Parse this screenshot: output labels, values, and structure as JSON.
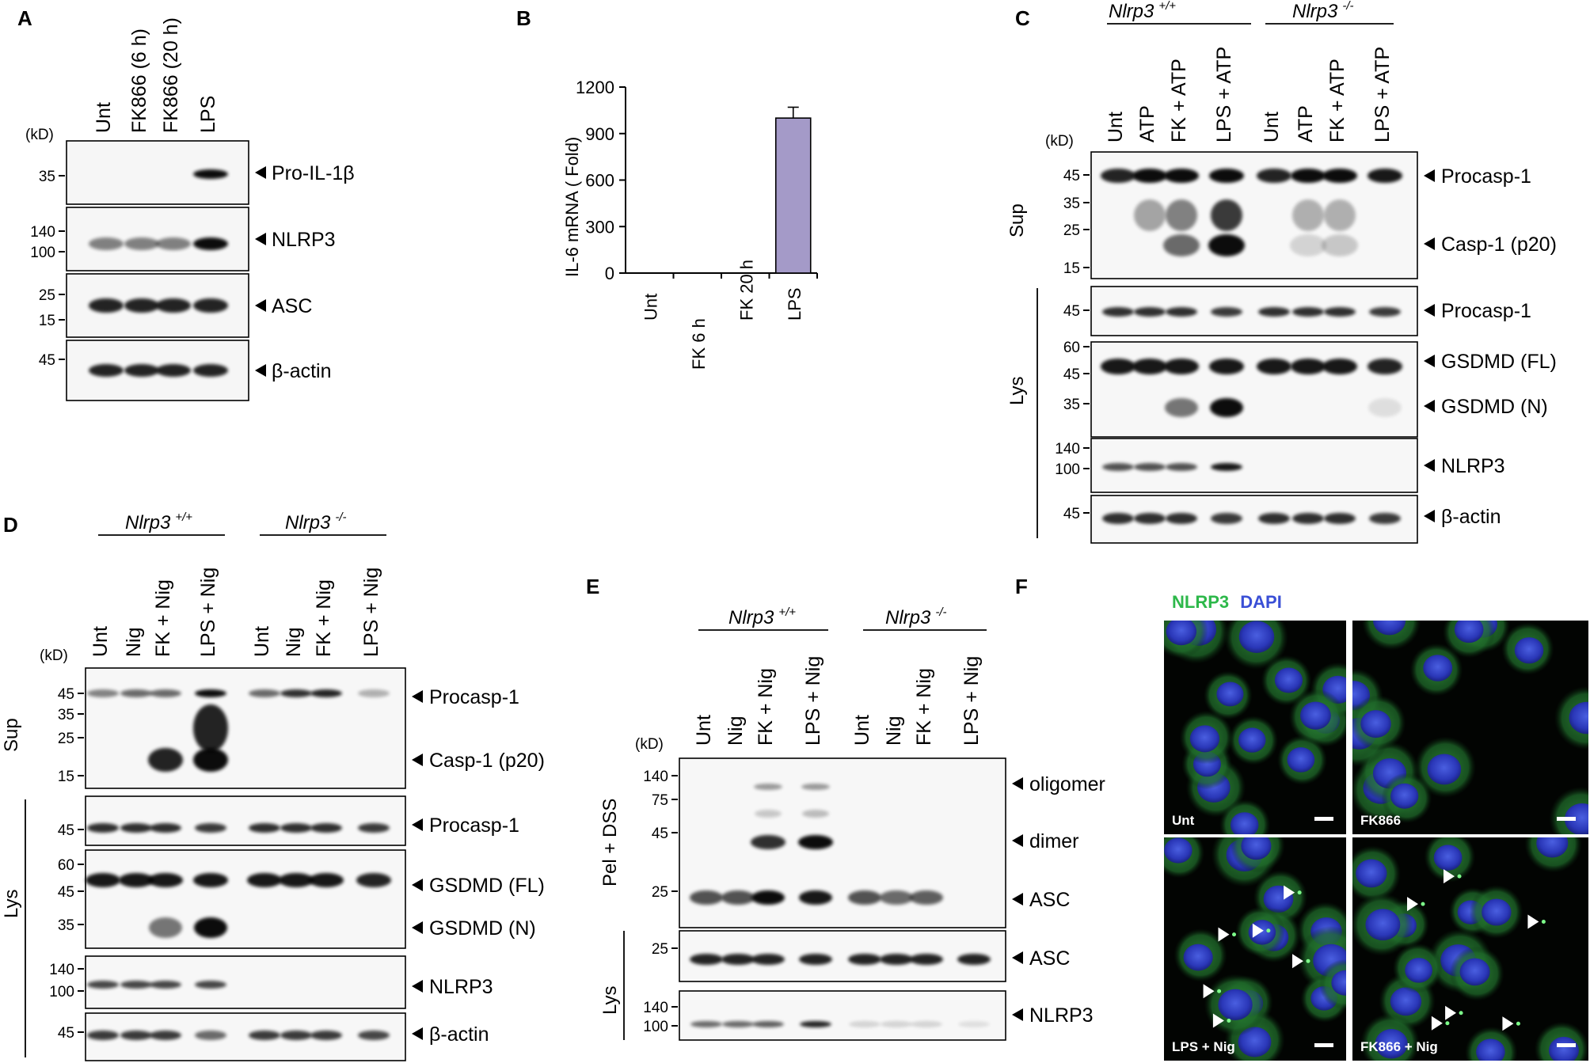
{
  "panels": {
    "A": {
      "label": "A",
      "kd_label": "(kD)",
      "lanes": [
        "Unt",
        "FK866 (6 h)",
        "FK866 (20 h)",
        "LPS"
      ],
      "blots": [
        {
          "name": "Pro-IL-1β",
          "markers": [
            "35"
          ],
          "bands": [
            0,
            0,
            0,
            1
          ]
        },
        {
          "name": "NLRP3",
          "markers": [
            "140",
            "100"
          ],
          "bands": [
            0.5,
            0.5,
            0.5,
            1
          ]
        },
        {
          "name": "ASC",
          "markers": [
            "25",
            "15"
          ],
          "bands": [
            0.9,
            0.9,
            0.9,
            0.9
          ]
        },
        {
          "name": "β-actin",
          "markers": [
            "45"
          ],
          "bands": [
            0.9,
            0.9,
            0.9,
            0.9
          ]
        }
      ]
    },
    "B": {
      "label": "B",
      "chart_data": {
        "type": "bar",
        "categories": [
          "Unt",
          "FK 6 h",
          "FK 20 h",
          "LPS"
        ],
        "values": [
          0,
          0,
          0,
          1000
        ],
        "error": [
          0,
          0,
          0,
          70
        ],
        "ylabel": "IL-6 mRNA ( Fold)",
        "xlabel": "",
        "ylim": [
          0,
          1200
        ],
        "yticks": [
          "0",
          "300",
          "600",
          "900",
          "1200"
        ],
        "bar_color": "#a49ac8"
      }
    },
    "C": {
      "label": "C",
      "kd_label": "(kD)",
      "group_wt": "Nlrp3",
      "group_wt_sup": "+/+",
      "group_ko": "Nlrp3",
      "group_ko_sup": "-/-",
      "lanes": [
        "Unt",
        "ATP",
        "FK + ATP",
        "LPS + ATP",
        "Unt",
        "ATP",
        "FK + ATP",
        "LPS + ATP"
      ],
      "sup_label": "Sup",
      "lys_label": "Lys",
      "blots": [
        {
          "name": "Procasp-1",
          "name2": "Casp-1 (p20)",
          "markers": [
            "45",
            "35",
            "25",
            "15"
          ]
        },
        {
          "name": "Procasp-1",
          "markers": [
            "45"
          ]
        },
        {
          "name": "GSDMD (FL)",
          "name2": "GSDMD (N)",
          "markers": [
            "60",
            "45",
            "35"
          ]
        },
        {
          "name": "NLRP3",
          "markers": [
            "140",
            "100"
          ]
        },
        {
          "name": "β-actin",
          "markers": [
            "45"
          ]
        }
      ]
    },
    "D": {
      "label": "D",
      "kd_label": "(kD)",
      "group_wt": "Nlrp3",
      "group_wt_sup": "+/+",
      "group_ko": "Nlrp3",
      "group_ko_sup": "-/-",
      "lanes": [
        "Unt",
        "Nig",
        "FK + Nig",
        "LPS + Nig",
        "Unt",
        "Nig",
        "FK + Nig",
        "LPS + Nig"
      ],
      "sup_label": "Sup",
      "lys_label": "Lys",
      "blots": [
        {
          "name": "Procasp-1",
          "name2": "Casp-1 (p20)",
          "markers": [
            "45",
            "35",
            "25",
            "15"
          ]
        },
        {
          "name": "Procasp-1",
          "markers": [
            "45"
          ]
        },
        {
          "name": "GSDMD (FL)",
          "name2": "GSDMD (N)",
          "markers": [
            "60",
            "45",
            "35"
          ]
        },
        {
          "name": "NLRP3",
          "markers": [
            "140",
            "100"
          ]
        },
        {
          "name": "β-actin",
          "markers": [
            "45"
          ]
        }
      ]
    },
    "E": {
      "label": "E",
      "kd_label": "(kD)",
      "group_wt": "Nlrp3",
      "group_wt_sup": "+/+",
      "group_ko": "Nlrp3",
      "group_ko_sup": "-/-",
      "lanes": [
        "Unt",
        "Nig",
        "FK + Nig",
        "LPS + Nig",
        "Unt",
        "Nig",
        "FK + Nig",
        "LPS + Nig"
      ],
      "pel_label": "Pel + DSS",
      "lys_label": "Lys",
      "blots": [
        {
          "name": "oligomer",
          "name2": "dimer",
          "name3": "ASC",
          "markers": [
            "140",
            "75",
            "45",
            "25"
          ]
        },
        {
          "name": "ASC",
          "markers": [
            "25"
          ]
        },
        {
          "name": "NLRP3",
          "markers": [
            "140",
            "100"
          ]
        }
      ]
    },
    "F": {
      "label": "F",
      "legend_green": "NLRP3",
      "legend_blue": "DAPI",
      "images": [
        "Unt",
        "FK866",
        "LPS + Nig",
        "FK866 + Nig"
      ]
    }
  }
}
